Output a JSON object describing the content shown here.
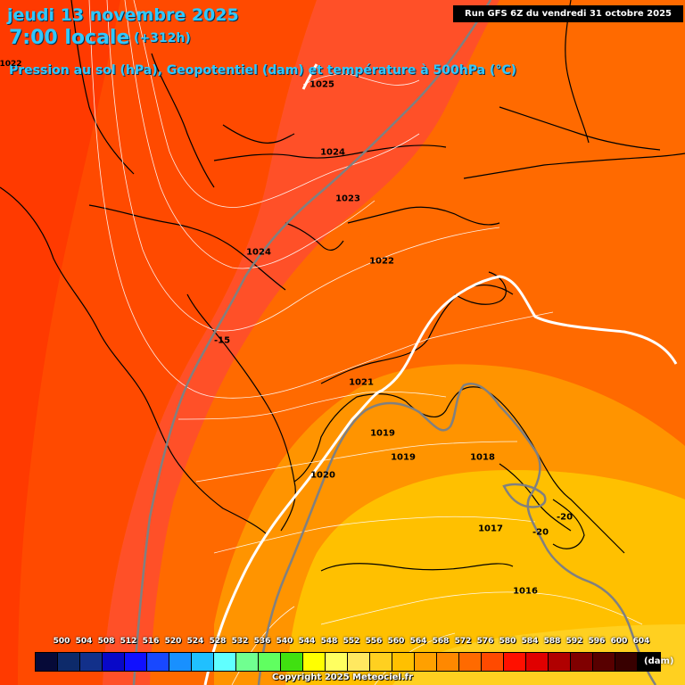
{
  "title": {
    "date": "jeudi 13 novembre 2025",
    "time": "7:00 locale",
    "offset": "(+312h)",
    "description": "Pression au sol (hPa), Geopotentiel (dam) et température à 500hPa (°C)"
  },
  "run": "Run GFS 6Z du vendredi 31 octobre 2025",
  "pressure_labels": [
    "1025",
    "1024",
    "1023",
    "1024",
    "1022",
    "1021",
    "1019",
    "1019",
    "1018",
    "1020",
    "1017",
    "1016",
    "1022"
  ],
  "temperature_labels": [
    "-15",
    "-20",
    "-20"
  ],
  "scale": {
    "values": [
      "500",
      "504",
      "508",
      "512",
      "516",
      "520",
      "524",
      "528",
      "532",
      "536",
      "540",
      "544",
      "548",
      "552",
      "556",
      "560",
      "564",
      "568",
      "572",
      "576",
      "580",
      "584",
      "588",
      "592",
      "596",
      "600",
      "604"
    ],
    "colors": [
      "#060a38",
      "#0d2a6a",
      "#12308a",
      "#0808c8",
      "#1010ff",
      "#1848ff",
      "#1890ff",
      "#20c0ff",
      "#60ffff",
      "#70ff90",
      "#60ff60",
      "#40e010",
      "#ffff00",
      "#ffff60",
      "#ffe860",
      "#ffd020",
      "#ffc000",
      "#ffa000",
      "#ff8800",
      "#ff6a00",
      "#ff4a00",
      "#ff1000",
      "#e00000",
      "#b00000",
      "#800000",
      "#580000",
      "#380000",
      "#000000"
    ],
    "unit": "(dam)"
  },
  "copyright": "Copyright 2025 Meteociel.fr"
}
